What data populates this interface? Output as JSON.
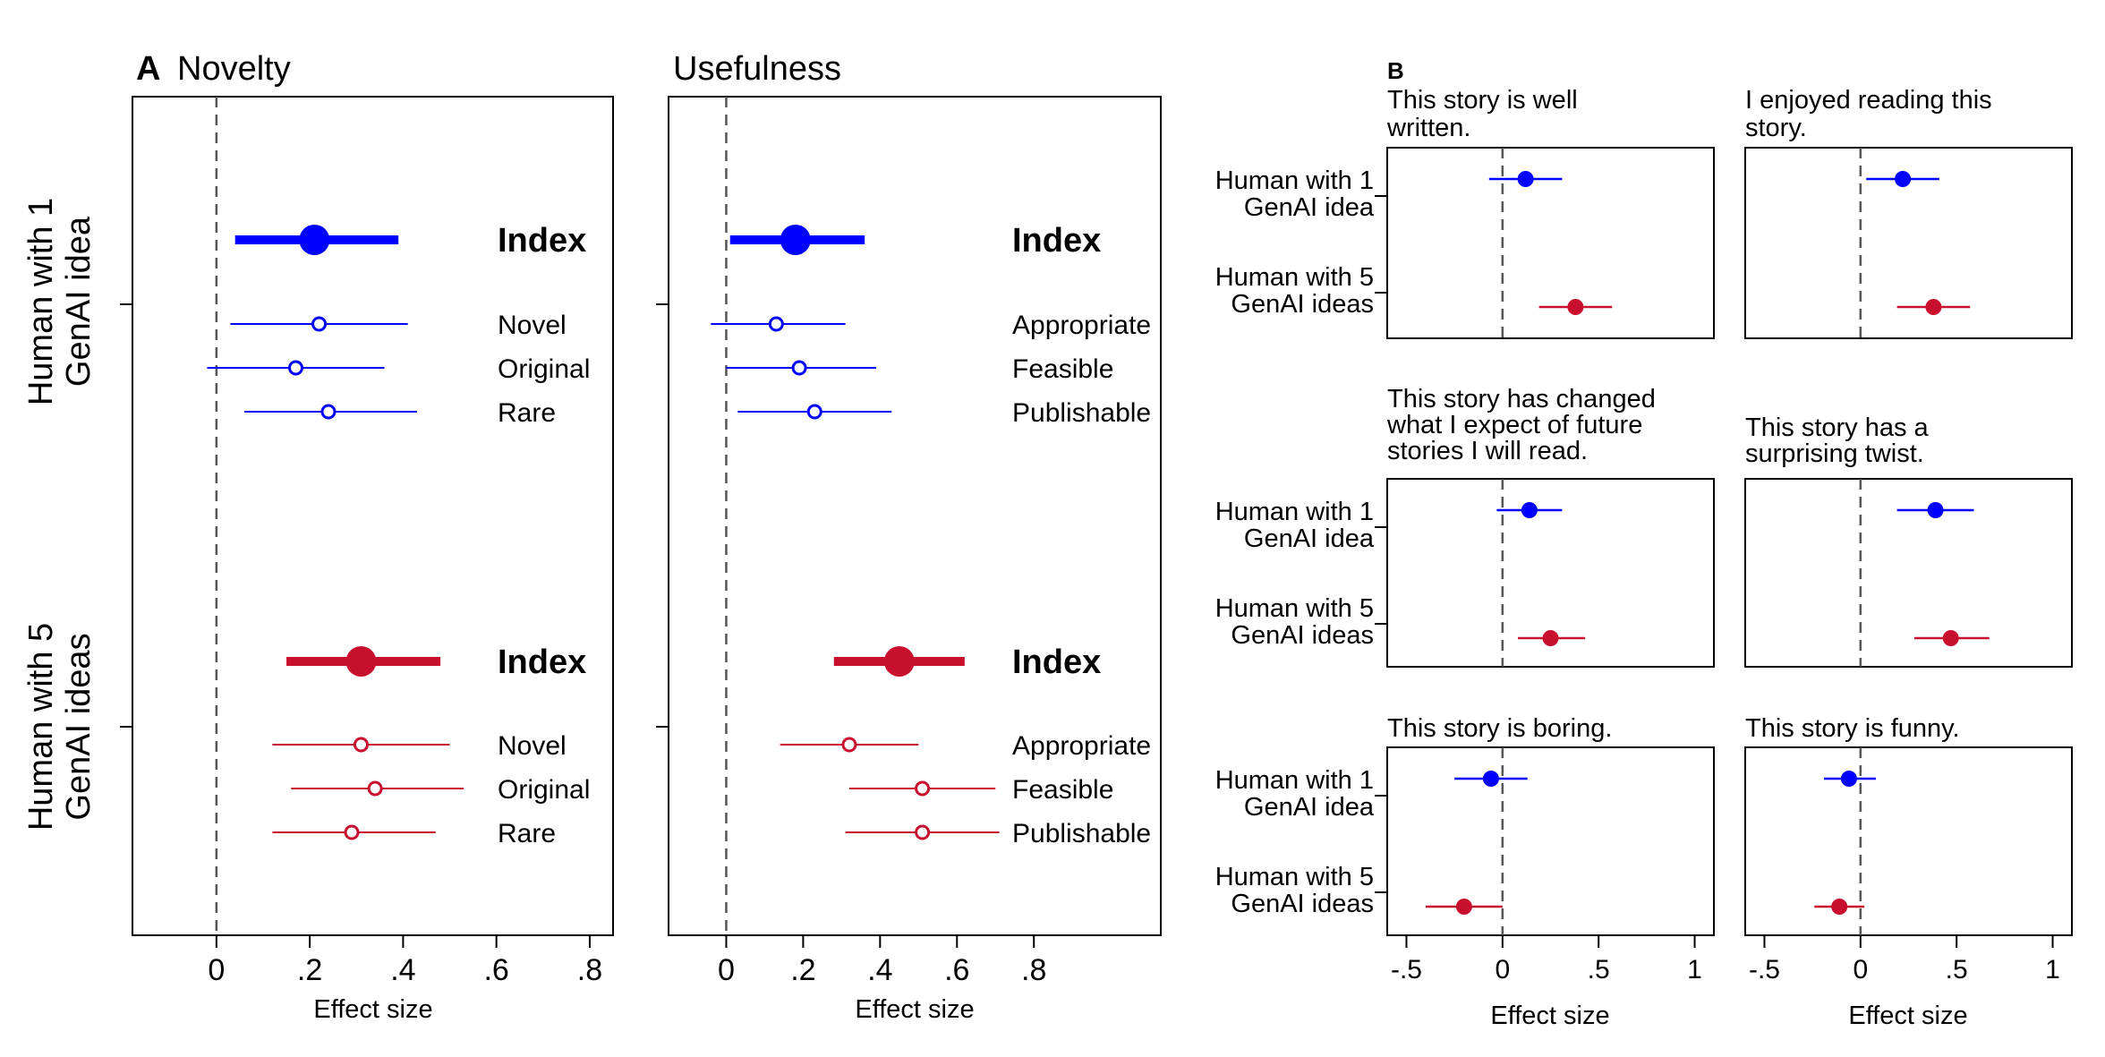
{
  "colors": {
    "g1": "#0000ff",
    "g5": "#c8102e",
    "axis": "#000000",
    "ref": "#555555"
  },
  "panel_a": {
    "letter": "A",
    "row_labels": [
      {
        "line1": "Human with 1",
        "line2": "GenAI idea"
      },
      {
        "line1": "Human with 5",
        "line2": "GenAI ideas"
      }
    ],
    "tick_labels": [
      "0",
      ".2",
      ".4",
      ".6",
      ".8"
    ],
    "xlabel": "Effect size",
    "index_label": "Index"
  },
  "panel_b": {
    "letter": "B",
    "row_labels": [
      {
        "line1": "Human with 1",
        "line2": "GenAI idea"
      },
      {
        "line1": "Human with 5",
        "line2": "GenAI ideas"
      }
    ],
    "tick_labels": [
      "-.5",
      "0",
      ".5",
      "1"
    ],
    "xlabel": "Effect size"
  },
  "chart_data": [
    {
      "type": "scatter",
      "chart": "coefficient-plot",
      "title": "Novelty",
      "xlabel": "Effect size",
      "xlim": [
        -0.18,
        0.85
      ],
      "xticks": [
        0,
        0.2,
        0.4,
        0.6,
        0.8
      ],
      "groups": [
        {
          "name": "Human with 1 GenAI idea",
          "items": [
            {
              "label": "Index",
              "estimate": 0.21,
              "ci": [
                0.04,
                0.39
              ]
            },
            {
              "label": "Novel",
              "estimate": 0.22,
              "ci": [
                0.03,
                0.41
              ]
            },
            {
              "label": "Original",
              "estimate": 0.17,
              "ci": [
                -0.02,
                0.36
              ]
            },
            {
              "label": "Rare",
              "estimate": 0.24,
              "ci": [
                0.06,
                0.43
              ]
            }
          ]
        },
        {
          "name": "Human with 5 GenAI ideas",
          "items": [
            {
              "label": "Index",
              "estimate": 0.31,
              "ci": [
                0.15,
                0.48
              ]
            },
            {
              "label": "Novel",
              "estimate": 0.31,
              "ci": [
                0.12,
                0.5
              ]
            },
            {
              "label": "Original",
              "estimate": 0.34,
              "ci": [
                0.16,
                0.53
              ]
            },
            {
              "label": "Rare",
              "estimate": 0.29,
              "ci": [
                0.12,
                0.47
              ]
            }
          ]
        }
      ]
    },
    {
      "type": "scatter",
      "chart": "coefficient-plot",
      "title": "Usefulness",
      "xlabel": "Effect size",
      "xlim": [
        -0.15,
        1.13
      ],
      "xticks": [
        0,
        0.2,
        0.4,
        0.6,
        0.8
      ],
      "groups": [
        {
          "name": "Human with 1 GenAI idea",
          "items": [
            {
              "label": "Index",
              "estimate": 0.18,
              "ci": [
                0.01,
                0.36
              ]
            },
            {
              "label": "Appropriate",
              "estimate": 0.13,
              "ci": [
                -0.04,
                0.31
              ]
            },
            {
              "label": "Feasible",
              "estimate": 0.19,
              "ci": [
                0.0,
                0.39
              ]
            },
            {
              "label": "Publishable",
              "estimate": 0.23,
              "ci": [
                0.03,
                0.43
              ]
            }
          ]
        },
        {
          "name": "Human with 5 GenAI ideas",
          "items": [
            {
              "label": "Index",
              "estimate": 0.45,
              "ci": [
                0.28,
                0.62
              ]
            },
            {
              "label": "Appropriate",
              "estimate": 0.32,
              "ci": [
                0.14,
                0.5
              ]
            },
            {
              "label": "Feasible",
              "estimate": 0.51,
              "ci": [
                0.32,
                0.7
              ]
            },
            {
              "label": "Publishable",
              "estimate": 0.51,
              "ci": [
                0.31,
                0.71
              ]
            }
          ]
        }
      ]
    },
    {
      "type": "scatter",
      "chart": "coefficient-plot",
      "title": "This story is well written.",
      "xlabel": "",
      "xlim": [
        -0.6,
        1.1
      ],
      "xticks": [
        -0.5,
        0,
        0.5,
        1
      ],
      "points": [
        {
          "name": "Human with 1 GenAI idea",
          "estimate": 0.12,
          "ci": [
            -0.07,
            0.31
          ]
        },
        {
          "name": "Human with 5 GenAI ideas",
          "estimate": 0.38,
          "ci": [
            0.19,
            0.57
          ]
        }
      ]
    },
    {
      "type": "scatter",
      "chart": "coefficient-plot",
      "title": "I enjoyed reading this story.",
      "xlabel": "",
      "xlim": [
        -0.6,
        1.1
      ],
      "xticks": [
        -0.5,
        0,
        0.5,
        1
      ],
      "points": [
        {
          "name": "Human with 1 GenAI idea",
          "estimate": 0.22,
          "ci": [
            0.03,
            0.41
          ]
        },
        {
          "name": "Human with 5 GenAI ideas",
          "estimate": 0.38,
          "ci": [
            0.19,
            0.57
          ]
        }
      ]
    },
    {
      "type": "scatter",
      "chart": "coefficient-plot",
      "title": "This story has changed what I expect of future stories I will read.",
      "xlabel": "",
      "xlim": [
        -0.6,
        1.1
      ],
      "xticks": [
        -0.5,
        0,
        0.5,
        1
      ],
      "points": [
        {
          "name": "Human with 1 GenAI idea",
          "estimate": 0.14,
          "ci": [
            -0.03,
            0.31
          ]
        },
        {
          "name": "Human with 5 GenAI ideas",
          "estimate": 0.25,
          "ci": [
            0.08,
            0.43
          ]
        }
      ]
    },
    {
      "type": "scatter",
      "chart": "coefficient-plot",
      "title": "This story has a surprising twist.",
      "xlabel": "",
      "xlim": [
        -0.6,
        1.1
      ],
      "xticks": [
        -0.5,
        0,
        0.5,
        1
      ],
      "points": [
        {
          "name": "Human with 1 GenAI idea",
          "estimate": 0.39,
          "ci": [
            0.19,
            0.59
          ]
        },
        {
          "name": "Human with 5 GenAI ideas",
          "estimate": 0.47,
          "ci": [
            0.28,
            0.67
          ]
        }
      ]
    },
    {
      "type": "scatter",
      "chart": "coefficient-plot",
      "title": "This story is boring.",
      "xlabel": "Effect size",
      "xlim": [
        -0.6,
        1.1
      ],
      "xticks": [
        -0.5,
        0,
        0.5,
        1
      ],
      "points": [
        {
          "name": "Human with 1 GenAI idea",
          "estimate": -0.06,
          "ci": [
            -0.25,
            0.13
          ]
        },
        {
          "name": "Human with 5 GenAI ideas",
          "estimate": -0.2,
          "ci": [
            -0.4,
            0.0
          ]
        }
      ]
    },
    {
      "type": "scatter",
      "chart": "coefficient-plot",
      "title": "This story is funny.",
      "xlabel": "Effect size",
      "xlim": [
        -0.6,
        1.1
      ],
      "xticks": [
        -0.5,
        0,
        0.5,
        1
      ],
      "points": [
        {
          "name": "Human with 1 GenAI idea",
          "estimate": -0.06,
          "ci": [
            -0.19,
            0.08
          ]
        },
        {
          "name": "Human with 5 GenAI ideas",
          "estimate": -0.11,
          "ci": [
            -0.24,
            0.02
          ]
        }
      ]
    }
  ]
}
